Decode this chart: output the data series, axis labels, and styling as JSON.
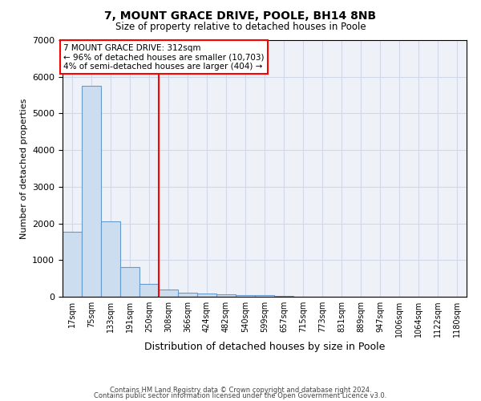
{
  "title1": "7, MOUNT GRACE DRIVE, POOLE, BH14 8NB",
  "title2": "Size of property relative to detached houses in Poole",
  "xlabel": "Distribution of detached houses by size in Poole",
  "ylabel": "Number of detached properties",
  "categories": [
    "17sqm",
    "75sqm",
    "133sqm",
    "191sqm",
    "250sqm",
    "308sqm",
    "366sqm",
    "424sqm",
    "482sqm",
    "540sqm",
    "599sqm",
    "657sqm",
    "715sqm",
    "773sqm",
    "831sqm",
    "889sqm",
    "947sqm",
    "1006sqm",
    "1064sqm",
    "1122sqm",
    "1180sqm"
  ],
  "values": [
    1780,
    5750,
    2050,
    810,
    340,
    190,
    110,
    80,
    60,
    50,
    40,
    30,
    10,
    0,
    0,
    0,
    0,
    0,
    0,
    0,
    0
  ],
  "bar_color": "#ccddf0",
  "bar_edge_color": "#6699cc",
  "red_line_x": 4.5,
  "annotation_text": "7 MOUNT GRACE DRIVE: 312sqm\n← 96% of detached houses are smaller (10,703)\n4% of semi-detached houses are larger (404) →",
  "annotation_box_color": "white",
  "annotation_box_edge_color": "red",
  "red_line_color": "red",
  "ylim": [
    0,
    7000
  ],
  "yticks": [
    0,
    1000,
    2000,
    3000,
    4000,
    5000,
    6000,
    7000
  ],
  "grid_color": "#d0d8e8",
  "background_color": "#eef2f8",
  "footnote1": "Contains HM Land Registry data © Crown copyright and database right 2024.",
  "footnote2": "Contains public sector information licensed under the Open Government Licence v3.0."
}
